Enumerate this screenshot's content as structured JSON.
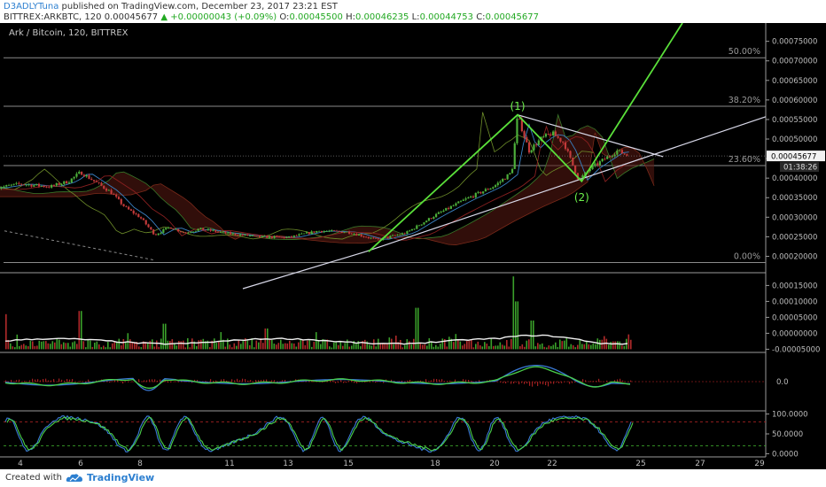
{
  "header": {
    "author": "D3ADLYTuna",
    "published_text": "published on TradingView.com, December 23, 2017 23:21 EST",
    "symbol": "BITTREX:ARKBTC, 120",
    "last": "0.00045677",
    "change": "+0.00000043 (+0.09%)",
    "o_label": "O:",
    "o": "0.00045500",
    "h_label": "H:",
    "h": "0.00046235",
    "l_label": "L:",
    "l": "0.00044753",
    "c_label": "C:",
    "c": "0.00045677"
  },
  "footer": {
    "created_with": "Created with",
    "brand": "TradingView"
  },
  "chart_data": {
    "type": "line",
    "title": "Ark / Bitcoin, 120, BITTREX",
    "x_ticks": [
      "4",
      "6",
      "8",
      "11",
      "13",
      "15",
      "18",
      "20",
      "22",
      "25",
      "27",
      "29"
    ],
    "y_ticks": [
      "0.00075000",
      "0.00070000",
      "0.00065000",
      "0.00060000",
      "0.00055000",
      "0.00050000",
      "0.00045000",
      "0.00040000",
      "0.00035000",
      "0.00030000",
      "0.00025000",
      "0.00020000"
    ],
    "ylim": [
      0.000158,
      0.00079
    ],
    "last_price_label": "0.00045677",
    "countdown_label": "01:38:26",
    "fib_levels": [
      {
        "label": "50.00%",
        "value": 0.000708
      },
      {
        "label": "38.20%",
        "value": 0.000584
      },
      {
        "label": "23.60%",
        "value": 0.000432
      },
      {
        "label": "0.00%",
        "value": 0.000184
      }
    ],
    "price_series": [
      {
        "day": 3.2,
        "price": 0.000375
      },
      {
        "day": 4.0,
        "price": 0.000385
      },
      {
        "day": 5.0,
        "price": 0.000378
      },
      {
        "day": 5.6,
        "price": 0.000392
      },
      {
        "day": 6.0,
        "price": 0.000415
      },
      {
        "day": 6.4,
        "price": 0.000395
      },
      {
        "day": 7.0,
        "price": 0.000365
      },
      {
        "day": 7.5,
        "price": 0.000325
      },
      {
        "day": 8.0,
        "price": 0.0003
      },
      {
        "day": 8.5,
        "price": 0.000255
      },
      {
        "day": 9.0,
        "price": 0.000275
      },
      {
        "day": 9.5,
        "price": 0.00026
      },
      {
        "day": 10.0,
        "price": 0.00027
      },
      {
        "day": 11.0,
        "price": 0.000258
      },
      {
        "day": 12.0,
        "price": 0.00025
      },
      {
        "day": 13.0,
        "price": 0.000248
      },
      {
        "day": 14.0,
        "price": 0.000265
      },
      {
        "day": 15.0,
        "price": 0.000262
      },
      {
        "day": 16.0,
        "price": 0.000242
      },
      {
        "day": 17.0,
        "price": 0.00026
      },
      {
        "day": 18.0,
        "price": 0.000305
      },
      {
        "day": 19.0,
        "price": 0.000345
      },
      {
        "day": 20.0,
        "price": 0.00038
      },
      {
        "day": 20.6,
        "price": 0.000415
      },
      {
        "day": 20.8,
        "price": 0.00056
      },
      {
        "day": 21.2,
        "price": 0.00047
      },
      {
        "day": 21.6,
        "price": 0.0005
      },
      {
        "day": 22.0,
        "price": 0.000515
      },
      {
        "day": 22.4,
        "price": 0.00049
      },
      {
        "day": 22.9,
        "price": 0.000395
      },
      {
        "day": 23.3,
        "price": 0.000425
      },
      {
        "day": 23.8,
        "price": 0.00045
      },
      {
        "day": 24.2,
        "price": 0.00047
      },
      {
        "day": 24.6,
        "price": 0.000457
      }
    ],
    "wave_labels": [
      {
        "label": "(1)",
        "day": 20.8,
        "price": 0.000575
      },
      {
        "label": "(2)",
        "day": 23.0,
        "price": 0.000378
      }
    ],
    "volume_axis": {
      "ticks": [
        "0.00015000",
        "0.00010000",
        "0.00005000",
        "0.00000000",
        "-0.00005000"
      ],
      "ylim": [
        -6e-05,
        0.00019
      ]
    },
    "macd_axis": {
      "ticks": [
        "0.0"
      ]
    },
    "stoch_axis": {
      "ticks": [
        "100.0000",
        "50.0000",
        "0.0000"
      ],
      "ylim": [
        -8,
        108
      ]
    }
  }
}
